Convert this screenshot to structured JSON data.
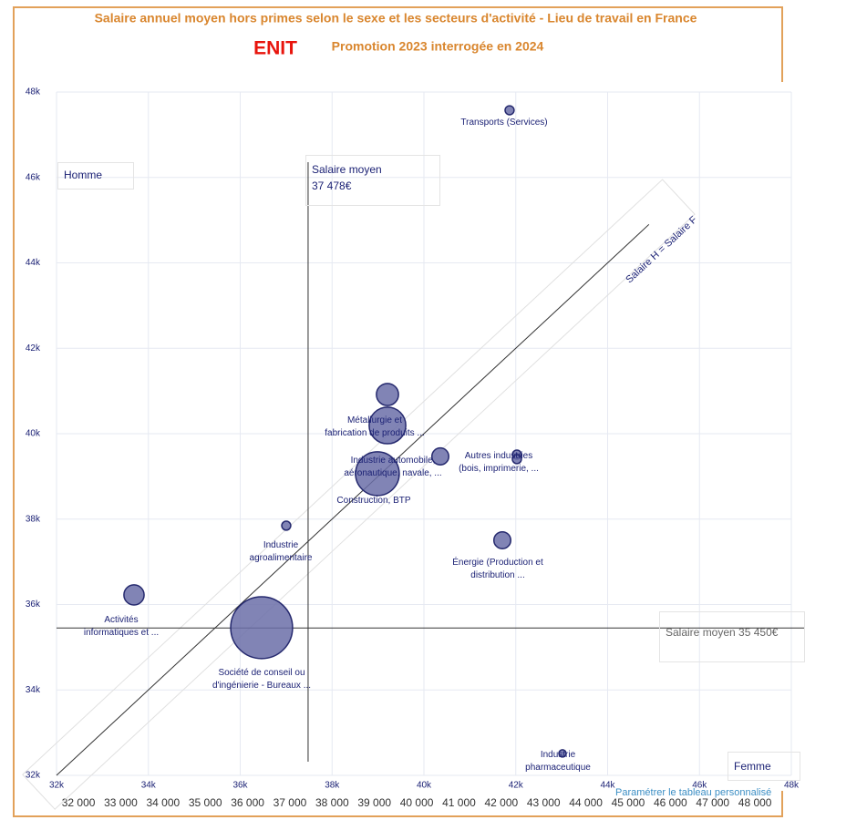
{
  "header": {
    "title": "Salaire annuel moyen hors primes selon le sexe et les secteurs d'activité - Lieu de travail en France",
    "brand": "ENIT",
    "subtitle": "Promotion 2023 interrogée en 2024"
  },
  "chart_data": {
    "type": "scatter",
    "x": [
      41865,
      39206,
      39206,
      40357,
      38987,
      42024,
      42024,
      37002,
      41707,
      33687,
      36466,
      43017
    ],
    "values": [
      47573,
      40918,
      40193,
      39468,
      39063,
      39511,
      39404,
      37847,
      37505,
      36225,
      35458,
      32514
    ],
    "sizes": [
      2,
      12,
      33,
      7,
      47,
      2,
      2,
      2,
      7,
      10,
      94,
      1.3
    ],
    "point_labels": [
      "Transports (Services)",
      null,
      "Métallurgie et\nfabrication de produits ...",
      "Industrie automobile,\naéronautique, navale, ...",
      "Construction, BTP",
      "Autres industries\n(bois, imprimerie, ...",
      null,
      "Industrie\nagroalimentaire",
      "Énergie (Production et\ndistribution ...",
      "Activités\ninformatiques et ...",
      "Société de conseil ou\nd'ingénierie - Bureaux ...",
      "Industrie\npharmaceutique"
    ],
    "color": "#6b6fa8",
    "stroke": "#25296e",
    "xlim": [
      32000,
      48000
    ],
    "ylim": [
      32000,
      48000
    ],
    "xticks": [
      {
        "value": 32000,
        "label": "32k"
      },
      {
        "value": 34000,
        "label": "34k"
      },
      {
        "value": 36000,
        "label": "36k"
      },
      {
        "value": 38000,
        "label": "38k"
      },
      {
        "value": 40000,
        "label": "40k"
      },
      {
        "value": 42000,
        "label": "42k"
      },
      {
        "value": 44000,
        "label": "44k"
      },
      {
        "value": 46000,
        "label": "46k"
      },
      {
        "value": 48000,
        "label": "48k"
      }
    ],
    "yticks": [
      {
        "value": 32000,
        "label": "32k"
      },
      {
        "value": 34000,
        "label": "34k"
      },
      {
        "value": 36000,
        "label": "36k"
      },
      {
        "value": 38000,
        "label": "38k"
      },
      {
        "value": 40000,
        "label": "40k"
      },
      {
        "value": 42000,
        "label": "42k"
      },
      {
        "value": 44000,
        "label": "44k"
      },
      {
        "value": 46000,
        "label": "46k"
      },
      {
        "value": 48000,
        "label": "48k"
      }
    ],
    "x2lim": [
      31480,
      48860
    ],
    "x2ticks": [
      {
        "value": 32000,
        "label": "32 000"
      },
      {
        "value": 33000,
        "label": "33 000"
      },
      {
        "value": 34000,
        "label": "34 000"
      },
      {
        "value": 35000,
        "label": "35 000"
      },
      {
        "value": 36000,
        "label": "36 000"
      },
      {
        "value": 37000,
        "label": "37 000"
      },
      {
        "value": 38000,
        "label": "38 000"
      },
      {
        "value": 39000,
        "label": "39 000"
      },
      {
        "value": 40000,
        "label": "40 000"
      },
      {
        "value": 41000,
        "label": "41 000"
      },
      {
        "value": 42000,
        "label": "42 000"
      },
      {
        "value": 43000,
        "label": "43 000"
      },
      {
        "value": 44000,
        "label": "44 000"
      },
      {
        "value": 45000,
        "label": "45 000"
      },
      {
        "value": 46000,
        "label": "46 000"
      },
      {
        "value": 47000,
        "label": "47 000"
      },
      {
        "value": 48000,
        "label": "48 000"
      }
    ],
    "grid": true,
    "y_axis_label": "Homme",
    "x_axis_label": "Femme",
    "mean_x": {
      "value": 37478,
      "label": "Salaire moyen\n37 478€"
    },
    "mean_y": {
      "value": 35450,
      "label": "Salaire moyen 35 450€"
    },
    "reference_line": {
      "label": "Salaire H = Salaire F",
      "from": 32000,
      "to": 44900
    }
  },
  "footer_link": "Paramétrer le tableau personnalisé"
}
